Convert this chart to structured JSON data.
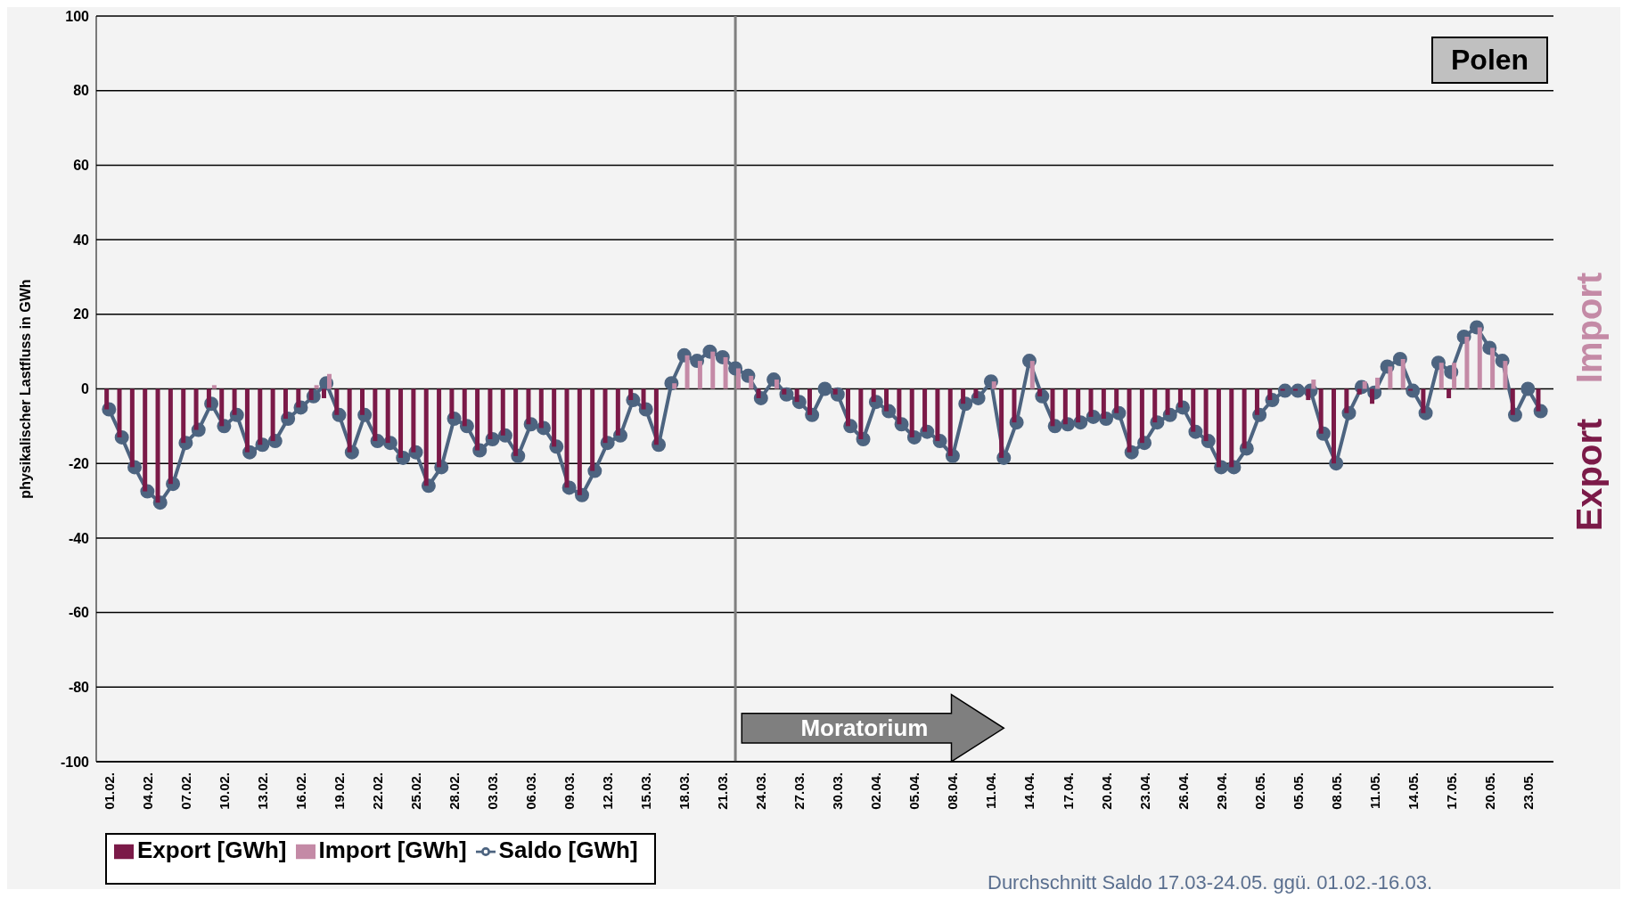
{
  "chart_data": {
    "type": "bar",
    "ylabel": "physikalischer Lastfluss in GWh",
    "x": [
      "--02-01",
      "--02-02",
      "--02-03",
      "--02-04",
      "--02-05",
      "--02-06",
      "--02-07",
      "--02-08",
      "--02-09",
      "--02-10",
      "--02-11",
      "--02-12",
      "--02-13",
      "--02-14",
      "--02-15",
      "--02-16",
      "--02-17",
      "--02-18",
      "--02-19",
      "--02-20",
      "--02-21",
      "--02-22",
      "--02-23",
      "--02-24",
      "--02-25",
      "--02-26",
      "--02-27",
      "--02-28",
      "--03-01",
      "--03-02",
      "--03-03",
      "--03-04",
      "--03-05",
      "--03-06",
      "--03-07",
      "--03-08",
      "--03-09",
      "--03-10",
      "--03-11",
      "--03-12",
      "--03-13",
      "--03-14",
      "--03-15",
      "--03-16",
      "--03-17",
      "--03-18",
      "--03-19",
      "--03-20",
      "--03-21",
      "--03-22",
      "--03-23",
      "--03-24",
      "--03-25",
      "--03-26",
      "--03-27",
      "--03-28",
      "--03-29",
      "--03-30",
      "--03-31",
      "--04-01",
      "--04-02",
      "--04-03",
      "--04-04",
      "--04-05",
      "--04-06",
      "--04-07",
      "--04-08",
      "--04-09",
      "--04-10",
      "--04-11",
      "--04-12",
      "--04-13",
      "--04-14",
      "--04-15",
      "--04-16",
      "--04-17",
      "--04-18",
      "--04-19",
      "--04-20",
      "--04-21",
      "--04-22",
      "--04-23",
      "--04-24",
      "--04-25",
      "--04-26",
      "--04-27",
      "--04-28",
      "--04-29",
      "--04-30",
      "--05-01",
      "--05-02",
      "--05-03",
      "--05-04",
      "--05-05",
      "--05-06",
      "--05-07",
      "--05-08",
      "--05-09",
      "--05-10",
      "--05-11",
      "--05-12",
      "--05-13",
      "--05-14",
      "--05-15",
      "--05-16",
      "--05-17",
      "--05-18",
      "--05-19",
      "--05-20",
      "--05-21",
      "--05-22",
      "--05-23",
      "--05-24"
    ],
    "series": [
      {
        "name": "Export [GWh]",
        "color": "#7b1a48",
        "values": [
          -5.5,
          -13,
          -21,
          -27.5,
          -30.5,
          -25.5,
          -14.5,
          -11,
          -5,
          -10,
          -7,
          -17,
          -15,
          -14,
          -8,
          -5,
          -3,
          -2.5,
          -7,
          -17,
          -7,
          -14,
          -14.5,
          -18.5,
          -17,
          -26,
          -21,
          -8,
          -10,
          -16.5,
          -13.5,
          -12.5,
          -18,
          -9.5,
          -10.5,
          -15.5,
          -26.5,
          -28.5,
          -22,
          -14.5,
          -12.5,
          -3,
          -5.5,
          -15,
          0,
          0,
          0,
          0,
          0,
          0,
          0,
          -2.5,
          0,
          -1.5,
          -3.5,
          -7,
          0,
          -1.5,
          -10,
          -13.5,
          -3.5,
          -6,
          -9.5,
          -13,
          -11.5,
          -14,
          -18,
          -4,
          -2.5,
          0,
          -18.5,
          -9,
          0,
          -2,
          -10,
          -9.5,
          -9,
          -7.5,
          -8,
          -6.5,
          -17,
          -14.5,
          -9,
          -7,
          -5,
          -11.5,
          -14,
          -21,
          -21,
          -16,
          -7,
          -3,
          -0.5,
          -0.5,
          -3,
          -12,
          -20,
          -6.5,
          -1.5,
          -4,
          0,
          0,
          -0.5,
          -6.5,
          0,
          -2.5,
          0,
          0,
          0,
          0,
          -7,
          0,
          -6
        ]
      },
      {
        "name": "Import [GWh]",
        "color": "#c48aa6",
        "values": [
          0,
          0,
          0,
          0,
          0,
          0,
          0,
          0,
          1,
          0,
          0,
          0,
          0,
          0,
          0,
          0,
          1,
          4,
          0,
          0,
          0,
          0,
          0,
          0,
          0,
          0,
          0,
          0,
          0,
          0,
          0,
          0,
          0,
          0,
          0,
          0,
          0,
          0,
          0,
          0,
          0,
          0,
          0,
          0,
          1.5,
          9,
          7.5,
          10,
          8.5,
          5.5,
          3.5,
          0,
          2.5,
          0,
          0,
          0,
          0,
          0,
          0,
          0,
          0,
          0,
          0,
          0,
          0,
          0,
          0,
          0,
          0,
          2,
          0,
          0,
          7.5,
          0,
          0,
          0,
          0,
          0,
          0,
          0,
          0,
          0,
          0,
          0,
          0,
          0,
          0,
          0,
          0,
          0,
          0,
          0,
          0,
          0,
          2.5,
          0,
          0,
          0,
          2,
          3,
          6,
          8,
          0,
          0,
          7,
          7,
          14,
          16.5,
          11,
          7.5,
          0,
          0,
          0
        ]
      },
      {
        "name": "Saldo [GWh]",
        "type": "line",
        "color": "#4d6480",
        "values": [
          -5.5,
          -13,
          -21,
          -27.5,
          -30.5,
          -25.5,
          -14.5,
          -11,
          -4,
          -10,
          -7,
          -17,
          -15,
          -14,
          -8,
          -5,
          -2,
          1.5,
          -7,
          -17,
          -7,
          -14,
          -14.5,
          -18.5,
          -17,
          -26,
          -21,
          -8,
          -10,
          -16.5,
          -13.5,
          -12.5,
          -18,
          -9.5,
          -10.5,
          -15.5,
          -26.5,
          -28.5,
          -22,
          -14.5,
          -12.5,
          -3,
          -5.5,
          -15,
          1.5,
          9,
          7.5,
          10,
          8.5,
          5.5,
          3.5,
          -2.5,
          2.5,
          -1.5,
          -3.5,
          -7,
          0,
          -1.5,
          -10,
          -13.5,
          -3.5,
          -6,
          -9.5,
          -13,
          -11.5,
          -14,
          -18,
          -4,
          -2.5,
          2,
          -18.5,
          -9,
          7.5,
          -2,
          -10,
          -9.5,
          -9,
          -7.5,
          -8,
          -6.5,
          -17,
          -14.5,
          -9,
          -7,
          -5,
          -11.5,
          -14,
          -21,
          -21,
          -16,
          -7,
          -3,
          -0.5,
          -0.5,
          -0.5,
          -12,
          -20,
          -6.5,
          0.5,
          -1,
          6,
          8,
          -0.5,
          -6.5,
          7,
          4.5,
          14,
          16.5,
          11,
          7.5,
          -7,
          0,
          -6
        ]
      }
    ],
    "xlim": [
      "--01-31",
      "--05-25"
    ],
    "xticks": [
      {
        "value": "--02-01",
        "label": "01.02."
      },
      {
        "value": "--02-04",
        "label": "04.02."
      },
      {
        "value": "--02-07",
        "label": "07.02."
      },
      {
        "value": "--02-10",
        "label": "10.02."
      },
      {
        "value": "--02-13",
        "label": "13.02."
      },
      {
        "value": "--02-16",
        "label": "16.02."
      },
      {
        "value": "--02-19",
        "label": "19.02."
      },
      {
        "value": "--02-22",
        "label": "22.02."
      },
      {
        "value": "--02-25",
        "label": "25.02."
      },
      {
        "value": "--02-28",
        "label": "28.02."
      },
      {
        "value": "--03-03",
        "label": "03.03."
      },
      {
        "value": "--03-06",
        "label": "06.03."
      },
      {
        "value": "--03-09",
        "label": "09.03."
      },
      {
        "value": "--03-12",
        "label": "12.03."
      },
      {
        "value": "--03-15",
        "label": "15.03."
      },
      {
        "value": "--03-18",
        "label": "18.03."
      },
      {
        "value": "--03-21",
        "label": "21.03."
      },
      {
        "value": "--03-24",
        "label": "24.03."
      },
      {
        "value": "--03-27",
        "label": "27.03."
      },
      {
        "value": "--03-30",
        "label": "30.03."
      },
      {
        "value": "--04-02",
        "label": "02.04."
      },
      {
        "value": "--04-05",
        "label": "05.04."
      },
      {
        "value": "--04-08",
        "label": "08.04."
      },
      {
        "value": "--04-11",
        "label": "11.04."
      },
      {
        "value": "--04-14",
        "label": "14.04."
      },
      {
        "value": "--04-17",
        "label": "17.04."
      },
      {
        "value": "--04-20",
        "label": "20.04."
      },
      {
        "value": "--04-23",
        "label": "23.04."
      },
      {
        "value": "--04-26",
        "label": "26.04."
      },
      {
        "value": "--04-29",
        "label": "29.04."
      },
      {
        "value": "--05-02",
        "label": "02.05."
      },
      {
        "value": "--05-05",
        "label": "05.05."
      },
      {
        "value": "--05-08",
        "label": "08.05."
      },
      {
        "value": "--05-11",
        "label": "11.05."
      },
      {
        "value": "--05-14",
        "label": "14.05."
      },
      {
        "value": "--05-17",
        "label": "17.05."
      },
      {
        "value": "--05-20",
        "label": "20.05."
      },
      {
        "value": "--05-23",
        "label": "23.05."
      }
    ],
    "ylim": [
      -100,
      100
    ],
    "yticks": [
      -100,
      -80,
      -60,
      -40,
      -20,
      0,
      20,
      40,
      60,
      80,
      100
    ],
    "grid": "y",
    "legend": "bottom",
    "marker": "circle",
    "line_style": "solid",
    "ref_lines": [
      {
        "axis": "x",
        "value": "--03-22",
        "label": "Moratorium",
        "color": "#7f7f7f"
      }
    ],
    "annotations": [
      "Polen",
      "Import",
      "Export",
      "Durchschnitt Saldo 17.03-24.05. ggü. 01.02.-16.03."
    ]
  }
}
